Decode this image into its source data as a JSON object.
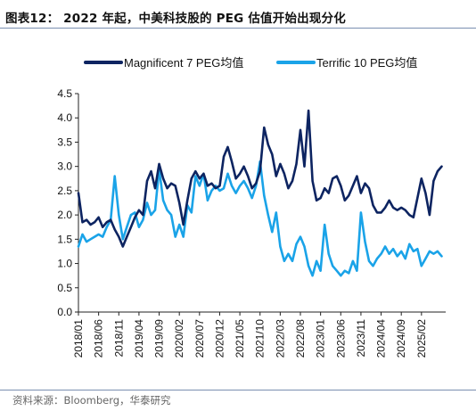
{
  "header": {
    "title": "图表12： 2022 年起，中美科技股的 PEG 估值开始出现分化"
  },
  "footer": {
    "source": "资料来源：Bloomberg，华泰研究"
  },
  "chart_data": {
    "type": "line",
    "title": "",
    "xlabel": "",
    "ylabel": "",
    "ylim": [
      0,
      4.5
    ],
    "yticks": [
      "0.0",
      "0.5",
      "1.0",
      "1.5",
      "2.0",
      "2.5",
      "3.0",
      "3.5",
      "4.0",
      "4.5"
    ],
    "xticks": [
      "2018/01",
      "2018/06",
      "2018/11",
      "2019/04",
      "2019/09",
      "2020/02",
      "2020/07",
      "2020/12",
      "2021/05",
      "2021/10",
      "2022/03",
      "2022/08",
      "2023/01",
      "2023/06",
      "2023/11",
      "2024/04",
      "2024/09",
      "2025/02"
    ],
    "grid": false,
    "legend": "top",
    "series": [
      {
        "name": "Magnificent 7 PEG均值",
        "color": "#0d2461",
        "points": [
          [
            "2018/01",
            2.45
          ],
          [
            "2018/02",
            1.85
          ],
          [
            "2018/03",
            1.9
          ],
          [
            "2018/04",
            1.8
          ],
          [
            "2018/05",
            1.85
          ],
          [
            "2018/06",
            1.95
          ],
          [
            "2018/07",
            1.75
          ],
          [
            "2018/08",
            1.85
          ],
          [
            "2018/09",
            1.9
          ],
          [
            "2018/10",
            1.7
          ],
          [
            "2018/11",
            1.55
          ],
          [
            "2018/12",
            1.35
          ],
          [
            "2019/01",
            1.55
          ],
          [
            "2019/02",
            1.75
          ],
          [
            "2019/03",
            1.95
          ],
          [
            "2019/04",
            2.1
          ],
          [
            "2019/05",
            2.0
          ],
          [
            "2019/06",
            2.7
          ],
          [
            "2019/07",
            2.9
          ],
          [
            "2019/08",
            2.55
          ],
          [
            "2019/09",
            3.05
          ],
          [
            "2019/10",
            2.75
          ],
          [
            "2019/11",
            2.55
          ],
          [
            "2019/12",
            2.65
          ],
          [
            "2020/01",
            2.6
          ],
          [
            "2020/02",
            2.25
          ],
          [
            "2020/03",
            1.8
          ],
          [
            "2020/04",
            2.3
          ],
          [
            "2020/05",
            2.75
          ],
          [
            "2020/06",
            2.9
          ],
          [
            "2020/07",
            2.75
          ],
          [
            "2020/08",
            2.85
          ],
          [
            "2020/09",
            2.6
          ],
          [
            "2020/10",
            2.65
          ],
          [
            "2020/11",
            2.55
          ],
          [
            "2020/12",
            2.6
          ],
          [
            "2021/01",
            3.2
          ],
          [
            "2021/02",
            3.4
          ],
          [
            "2021/03",
            3.1
          ],
          [
            "2021/04",
            2.75
          ],
          [
            "2021/05",
            2.85
          ],
          [
            "2021/06",
            3.0
          ],
          [
            "2021/07",
            2.8
          ],
          [
            "2021/08",
            2.55
          ],
          [
            "2021/09",
            2.65
          ],
          [
            "2021/10",
            2.9
          ],
          [
            "2021/11",
            3.8
          ],
          [
            "2021/12",
            3.45
          ],
          [
            "2022/01",
            3.25
          ],
          [
            "2022/02",
            2.8
          ],
          [
            "2022/03",
            3.05
          ],
          [
            "2022/04",
            2.85
          ],
          [
            "2022/05",
            2.55
          ],
          [
            "2022/06",
            2.7
          ],
          [
            "2022/07",
            3.05
          ],
          [
            "2022/08",
            3.75
          ],
          [
            "2022/09",
            3.0
          ],
          [
            "2022/10",
            4.15
          ],
          [
            "2022/11",
            2.7
          ],
          [
            "2022/12",
            2.3
          ],
          [
            "2023/01",
            2.35
          ],
          [
            "2023/02",
            2.55
          ],
          [
            "2023/03",
            2.45
          ],
          [
            "2023/04",
            2.75
          ],
          [
            "2023/05",
            2.8
          ],
          [
            "2023/06",
            2.6
          ],
          [
            "2023/07",
            2.3
          ],
          [
            "2023/08",
            2.4
          ],
          [
            "2023/09",
            2.6
          ],
          [
            "2023/10",
            2.8
          ],
          [
            "2023/11",
            2.45
          ],
          [
            "2023/12",
            2.65
          ],
          [
            "2024/01",
            2.55
          ],
          [
            "2024/02",
            2.2
          ],
          [
            "2024/03",
            2.05
          ],
          [
            "2024/04",
            2.05
          ],
          [
            "2024/05",
            2.15
          ],
          [
            "2024/06",
            2.3
          ],
          [
            "2024/07",
            2.15
          ],
          [
            "2024/08",
            2.1
          ],
          [
            "2024/09",
            2.15
          ],
          [
            "2024/10",
            2.1
          ],
          [
            "2024/11",
            2.0
          ],
          [
            "2024/12",
            1.95
          ],
          [
            "2025/01",
            2.35
          ],
          [
            "2025/02",
            2.75
          ],
          [
            "2025/03",
            2.45
          ],
          [
            "2025/04",
            2.0
          ],
          [
            "2025/05",
            2.7
          ],
          [
            "2025/06",
            2.9
          ],
          [
            "2025/07",
            3.0
          ]
        ]
      },
      {
        "name": "Terrific 10 PEG均值",
        "color": "#1aa3e8",
        "points": [
          [
            "2018/01",
            1.35
          ],
          [
            "2018/02",
            1.6
          ],
          [
            "2018/03",
            1.45
          ],
          [
            "2018/04",
            1.5
          ],
          [
            "2018/05",
            1.55
          ],
          [
            "2018/06",
            1.6
          ],
          [
            "2018/07",
            1.55
          ],
          [
            "2018/08",
            1.75
          ],
          [
            "2018/09",
            1.9
          ],
          [
            "2018/10",
            2.8
          ],
          [
            "2018/11",
            2.0
          ],
          [
            "2018/12",
            1.5
          ],
          [
            "2019/01",
            1.75
          ],
          [
            "2019/02",
            2.0
          ],
          [
            "2019/03",
            2.05
          ],
          [
            "2019/04",
            1.75
          ],
          [
            "2019/05",
            1.9
          ],
          [
            "2019/06",
            2.25
          ],
          [
            "2019/07",
            2.0
          ],
          [
            "2019/08",
            2.1
          ],
          [
            "2019/09",
            2.95
          ],
          [
            "2019/10",
            2.3
          ],
          [
            "2019/11",
            2.1
          ],
          [
            "2019/12",
            2.0
          ],
          [
            "2020/01",
            1.55
          ],
          [
            "2020/02",
            1.8
          ],
          [
            "2020/03",
            1.55
          ],
          [
            "2020/04",
            2.2
          ],
          [
            "2020/05",
            2.05
          ],
          [
            "2020/06",
            2.8
          ],
          [
            "2020/07",
            2.6
          ],
          [
            "2020/08",
            2.85
          ],
          [
            "2020/09",
            2.3
          ],
          [
            "2020/10",
            2.5
          ],
          [
            "2020/11",
            2.6
          ],
          [
            "2020/12",
            2.5
          ],
          [
            "2021/01",
            2.55
          ],
          [
            "2021/02",
            2.85
          ],
          [
            "2021/03",
            2.6
          ],
          [
            "2021/04",
            2.45
          ],
          [
            "2021/05",
            2.6
          ],
          [
            "2021/06",
            2.7
          ],
          [
            "2021/07",
            2.55
          ],
          [
            "2021/08",
            2.35
          ],
          [
            "2021/09",
            2.6
          ],
          [
            "2021/10",
            3.1
          ],
          [
            "2021/11",
            2.4
          ],
          [
            "2021/12",
            2.0
          ],
          [
            "2022/01",
            1.65
          ],
          [
            "2022/02",
            2.05
          ],
          [
            "2022/03",
            1.35
          ],
          [
            "2022/04",
            1.05
          ],
          [
            "2022/05",
            1.2
          ],
          [
            "2022/06",
            1.05
          ],
          [
            "2022/07",
            1.4
          ],
          [
            "2022/08",
            1.55
          ],
          [
            "2022/09",
            1.35
          ],
          [
            "2022/10",
            0.95
          ],
          [
            "2022/11",
            0.75
          ],
          [
            "2022/12",
            1.05
          ],
          [
            "2023/01",
            0.85
          ],
          [
            "2023/02",
            1.8
          ],
          [
            "2023/03",
            1.2
          ],
          [
            "2023/04",
            0.95
          ],
          [
            "2023/05",
            0.85
          ],
          [
            "2023/06",
            0.75
          ],
          [
            "2023/07",
            0.85
          ],
          [
            "2023/08",
            0.8
          ],
          [
            "2023/09",
            1.05
          ],
          [
            "2023/10",
            0.85
          ],
          [
            "2023/11",
            2.05
          ],
          [
            "2023/12",
            1.45
          ],
          [
            "2024/01",
            1.05
          ],
          [
            "2024/02",
            0.95
          ],
          [
            "2024/03",
            1.1
          ],
          [
            "2024/04",
            1.2
          ],
          [
            "2024/05",
            1.35
          ],
          [
            "2024/06",
            1.2
          ],
          [
            "2024/07",
            1.3
          ],
          [
            "2024/08",
            1.15
          ],
          [
            "2024/09",
            1.25
          ],
          [
            "2024/10",
            1.1
          ],
          [
            "2024/11",
            1.4
          ],
          [
            "2024/12",
            1.25
          ],
          [
            "2025/01",
            1.3
          ],
          [
            "2025/02",
            0.95
          ],
          [
            "2025/03",
            1.1
          ],
          [
            "2025/04",
            1.25
          ],
          [
            "2025/05",
            1.2
          ],
          [
            "2025/06",
            1.25
          ],
          [
            "2025/07",
            1.15
          ]
        ]
      }
    ]
  }
}
